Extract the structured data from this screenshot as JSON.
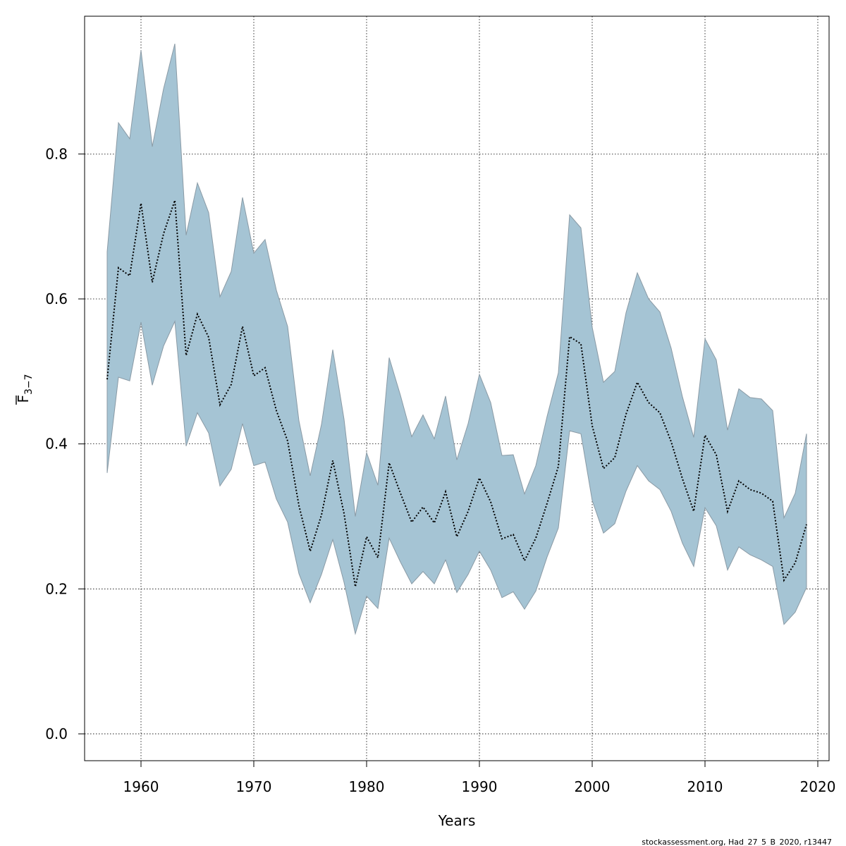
{
  "chart_data": {
    "type": "area",
    "xlabel": "Years",
    "ylabel": {
      "main": "F",
      "sub": "3−7"
    },
    "footer": "stockassessment.org, Had_27_5_B_2020, r13447",
    "xlim": [
      1955,
      2021
    ],
    "ylim": [
      -0.037,
      0.99
    ],
    "x_ticks": [
      1960,
      1970,
      1980,
      1990,
      2000,
      2010,
      2020
    ],
    "y_ticks": [
      0.0,
      0.2,
      0.4,
      0.6,
      0.8
    ],
    "y_tick_labels": [
      "0.0",
      "0.2",
      "0.4",
      "0.6",
      "0.8"
    ],
    "grid": true,
    "colors": {
      "band": "#a5c4d4",
      "band_edge": "#8a9aa5",
      "line": "#000000",
      "grid": "#000000"
    },
    "x": [
      1957,
      1958,
      1959,
      1960,
      1961,
      1962,
      1963,
      1964,
      1965,
      1966,
      1967,
      1968,
      1969,
      1970,
      1971,
      1972,
      1973,
      1974,
      1975,
      1976,
      1977,
      1978,
      1979,
      1980,
      1981,
      1982,
      1983,
      1984,
      1985,
      1986,
      1987,
      1988,
      1989,
      1990,
      1991,
      1992,
      1993,
      1994,
      1995,
      1996,
      1997,
      1998,
      1999,
      2000,
      2001,
      2002,
      2003,
      2004,
      2005,
      2006,
      2007,
      2008,
      2009,
      2010,
      2011,
      2012,
      2013,
      2014,
      2015,
      2016,
      2017,
      2018,
      2019
    ],
    "series": [
      {
        "role": "upper",
        "values": [
          0.665,
          0.843,
          0.821,
          0.943,
          0.81,
          0.89,
          0.952,
          0.688,
          0.76,
          0.719,
          0.603,
          0.638,
          0.74,
          0.663,
          0.682,
          0.612,
          0.562,
          0.432,
          0.356,
          0.427,
          0.53,
          0.434,
          0.3,
          0.388,
          0.343,
          0.519,
          0.467,
          0.41,
          0.44,
          0.407,
          0.466,
          0.378,
          0.428,
          0.496,
          0.457,
          0.384,
          0.385,
          0.331,
          0.37,
          0.438,
          0.498,
          0.716,
          0.698,
          0.561,
          0.485,
          0.5,
          0.581,
          0.636,
          0.6,
          0.582,
          0.532,
          0.465,
          0.409,
          0.545,
          0.516,
          0.419,
          0.476,
          0.464,
          0.462,
          0.446,
          0.298,
          0.332,
          0.414
        ]
      },
      {
        "role": "estimate",
        "values": [
          0.489,
          0.643,
          0.632,
          0.732,
          0.623,
          0.69,
          0.736,
          0.522,
          0.579,
          0.547,
          0.454,
          0.482,
          0.562,
          0.494,
          0.505,
          0.446,
          0.404,
          0.315,
          0.252,
          0.302,
          0.377,
          0.304,
          0.203,
          0.272,
          0.243,
          0.374,
          0.332,
          0.292,
          0.313,
          0.291,
          0.334,
          0.272,
          0.307,
          0.353,
          0.32,
          0.269,
          0.275,
          0.239,
          0.27,
          0.318,
          0.369,
          0.548,
          0.538,
          0.425,
          0.366,
          0.381,
          0.441,
          0.485,
          0.457,
          0.443,
          0.403,
          0.352,
          0.307,
          0.412,
          0.385,
          0.307,
          0.349,
          0.337,
          0.332,
          0.321,
          0.212,
          0.236,
          0.289
        ]
      },
      {
        "role": "lower",
        "values": [
          0.36,
          0.492,
          0.487,
          0.568,
          0.481,
          0.535,
          0.569,
          0.397,
          0.443,
          0.415,
          0.342,
          0.365,
          0.428,
          0.37,
          0.375,
          0.324,
          0.292,
          0.221,
          0.181,
          0.22,
          0.268,
          0.209,
          0.138,
          0.19,
          0.173,
          0.27,
          0.237,
          0.207,
          0.224,
          0.207,
          0.24,
          0.195,
          0.22,
          0.252,
          0.226,
          0.188,
          0.196,
          0.172,
          0.197,
          0.244,
          0.284,
          0.418,
          0.414,
          0.322,
          0.277,
          0.29,
          0.335,
          0.37,
          0.349,
          0.337,
          0.307,
          0.263,
          0.231,
          0.312,
          0.287,
          0.226,
          0.258,
          0.247,
          0.24,
          0.231,
          0.151,
          0.168,
          0.202
        ]
      }
    ]
  }
}
